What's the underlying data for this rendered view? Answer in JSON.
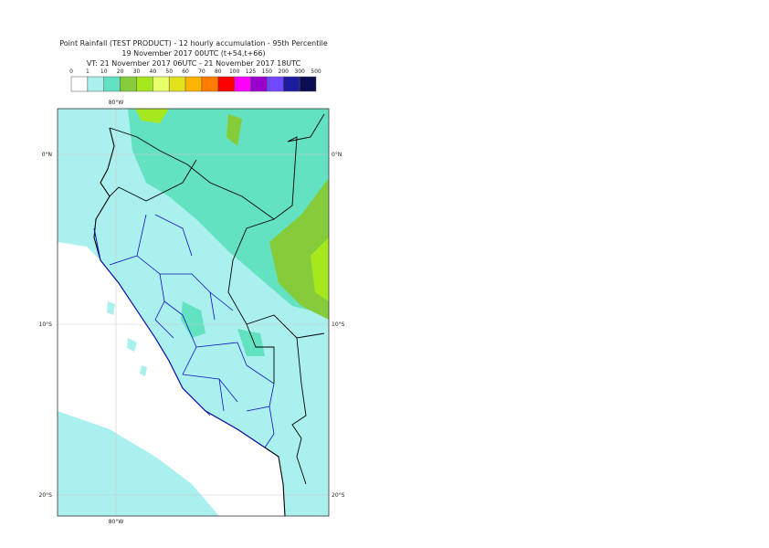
{
  "header": {
    "title": "Point Rainfall (TEST PRODUCT) - 12 hourly accumulation - 95th Percentile",
    "base_time": "19 November 2017 00UTC (t+54,t+66)",
    "valid_time": "VT: 21 November 2017 06UTC - 21 November 2017 18UTC"
  },
  "legend": {
    "labels": [
      "0",
      "1",
      "10",
      "20",
      "30",
      "40",
      "50",
      "60",
      "70",
      "80",
      "100",
      "125",
      "150",
      "200",
      "300",
      "500"
    ],
    "colors": [
      "#ffffff",
      "#aaf0ee",
      "#62e2c0",
      "#86cc3a",
      "#a6e81e",
      "#e8ff6a",
      "#e2e21c",
      "#ffb400",
      "#ff7c00",
      "#ff0000",
      "#ff00ff",
      "#9a00cc",
      "#7048ff",
      "#1c1ca0",
      "#0c0c52"
    ]
  },
  "map": {
    "lat_labels": [
      "0°N",
      "10°S",
      "20°S"
    ],
    "lon_labels": [
      "80°W"
    ]
  }
}
